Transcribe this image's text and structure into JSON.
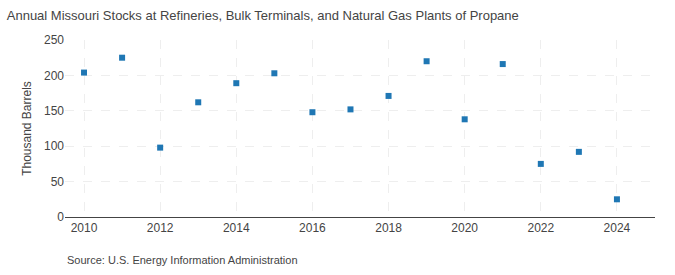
{
  "chart_data": {
    "type": "scatter",
    "title": "Annual Missouri Stocks at Refineries, Bulk Terminals, and Natural Gas Plants of Propane",
    "ylabel": "Thousand Barrels",
    "annotations": [
      "Source: U.S. Energy Information Administration"
    ],
    "x": [
      2010,
      2011,
      2012,
      2013,
      2014,
      2015,
      2016,
      2017,
      2018,
      2019,
      2020,
      2021,
      2022,
      2023,
      2024
    ],
    "values": [
      204,
      225,
      98,
      162,
      189,
      203,
      148,
      152,
      171,
      220,
      138,
      216,
      75,
      92,
      25
    ],
    "marker": "square",
    "xlim": [
      2009.5,
      2025.0
    ],
    "xticks": [
      2010,
      2012,
      2014,
      2016,
      2018,
      2020,
      2022,
      2024
    ],
    "ylim": [
      0,
      250
    ],
    "yticks": [
      0,
      50,
      100,
      150,
      200,
      250
    ],
    "grid": true
  }
}
